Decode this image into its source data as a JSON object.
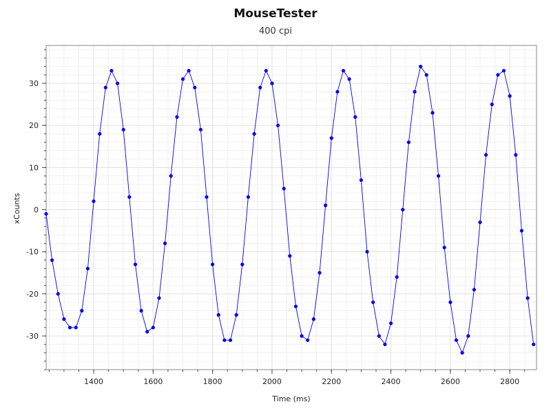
{
  "window": {
    "title": "MouseTester",
    "subtitle": "400 cpi"
  },
  "chart_data": {
    "type": "scatter",
    "title": "MouseTester",
    "subtitle": "400 cpi",
    "xlabel": "Time (ms)",
    "ylabel": "xCounts",
    "xlim": [
      1240,
      2890
    ],
    "ylim": [
      -38,
      39
    ],
    "x_ticks": [
      1400,
      1600,
      1800,
      2000,
      2200,
      2400,
      2600,
      2800
    ],
    "y_ticks": [
      -30,
      -20,
      -10,
      0,
      10,
      20,
      30
    ],
    "grid": true,
    "legend": "none",
    "series": [
      {
        "style": "markers",
        "color": "#0000ee",
        "x": [
          1240,
          1260,
          1280,
          1300,
          1320,
          1340,
          1360,
          1380,
          1400,
          1420,
          1440,
          1460,
          1480,
          1500,
          1520,
          1540,
          1560,
          1580,
          1600,
          1620,
          1640,
          1660,
          1680,
          1700,
          1720,
          1740,
          1760,
          1780,
          1800,
          1820,
          1840,
          1860,
          1880,
          1900,
          1920,
          1940,
          1960,
          1980,
          2000,
          2020,
          2040,
          2060,
          2080,
          2100,
          2120,
          2140,
          2160,
          2180,
          2200,
          2220,
          2240,
          2260,
          2280,
          2300,
          2320,
          2340,
          2360,
          2380,
          2400,
          2420,
          2440,
          2460,
          2480,
          2500,
          2520,
          2540,
          2560,
          2580,
          2600,
          2620,
          2640,
          2660,
          2680,
          2700,
          2720,
          2740,
          2760,
          2780,
          2800,
          2820,
          2840,
          2860,
          2880
        ],
        "y": [
          -1,
          -12,
          -20,
          -26,
          -28,
          -28,
          -24,
          -14,
          2,
          18,
          29,
          33,
          30,
          19,
          3,
          -13,
          -24,
          -29,
          -28,
          -21,
          -8,
          8,
          22,
          31,
          33,
          29,
          19,
          3,
          -13,
          -25,
          -31,
          -31,
          -25,
          -13,
          3,
          18,
          29,
          33,
          30,
          20,
          5,
          -11,
          -23,
          -30,
          -31,
          -26,
          -15,
          1,
          17,
          28,
          33,
          31,
          22,
          7,
          -10,
          -22,
          -30,
          -32,
          -27,
          -16,
          0,
          16,
          28,
          34,
          32,
          23,
          8,
          -9,
          -22,
          -31,
          -34,
          -30,
          -19,
          -3,
          13,
          25,
          32,
          33,
          27,
          13,
          -5,
          -21,
          -32
        ]
      },
      {
        "style": "line",
        "color": "#0000ee",
        "x": [
          1240,
          1260,
          1280,
          1300,
          1320,
          1340,
          1360,
          1380,
          1400,
          1420,
          1440,
          1460,
          1480,
          1500,
          1520,
          1540,
          1560,
          1580,
          1600,
          1620,
          1640,
          1660,
          1680,
          1700,
          1720,
          1740,
          1760,
          1780,
          1800,
          1820,
          1840,
          1860,
          1880,
          1900,
          1920,
          1940,
          1960,
          1980,
          2000,
          2020,
          2040,
          2060,
          2080,
          2100,
          2120,
          2140,
          2160,
          2180,
          2200,
          2220,
          2240,
          2260,
          2280,
          2300,
          2320,
          2340,
          2360,
          2380,
          2400,
          2420,
          2440,
          2460,
          2480,
          2500,
          2520,
          2540,
          2560,
          2580,
          2600,
          2620,
          2640,
          2660,
          2680,
          2700,
          2720,
          2740,
          2760,
          2780,
          2800,
          2820,
          2840,
          2860,
          2880
        ],
        "y": [
          -1,
          -12,
          -20,
          -26,
          -28,
          -28,
          -24,
          -14,
          2,
          18,
          29,
          33,
          30,
          19,
          3,
          -13,
          -24,
          -29,
          -28,
          -21,
          -8,
          8,
          22,
          31,
          33,
          29,
          19,
          3,
          -13,
          -25,
          -31,
          -31,
          -25,
          -13,
          3,
          18,
          29,
          33,
          30,
          20,
          5,
          -11,
          -23,
          -30,
          -31,
          -26,
          -15,
          1,
          17,
          28,
          33,
          31,
          22,
          7,
          -10,
          -22,
          -30,
          -32,
          -27,
          -16,
          0,
          16,
          28,
          34,
          32,
          23,
          8,
          -9,
          -22,
          -31,
          -34,
          -30,
          -19,
          -3,
          13,
          25,
          32,
          33,
          27,
          13,
          -5,
          -21,
          -32
        ]
      }
    ]
  }
}
